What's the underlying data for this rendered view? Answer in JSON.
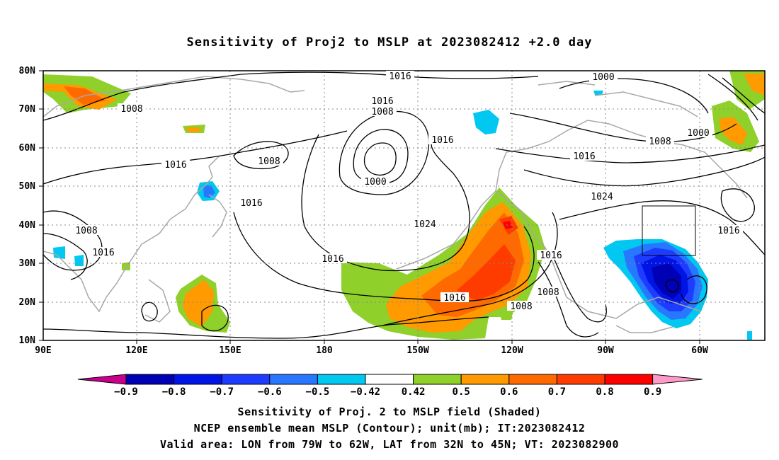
{
  "title": "Sensitivity of Proj2 to MSLP at 2023082412 +2.0 day",
  "map": {
    "lat_labels": [
      "80N",
      "70N",
      "60N",
      "50N",
      "40N",
      "30N",
      "20N",
      "10N"
    ],
    "lon_labels": [
      "90E",
      "120E",
      "150E",
      "180",
      "150W",
      "120W",
      "90W",
      "60W"
    ],
    "contour_labels": [
      {
        "text": "1016"
      },
      {
        "text": "1016"
      },
      {
        "text": "1008"
      },
      {
        "text": "1000"
      },
      {
        "text": "1008"
      },
      {
        "text": "1016"
      },
      {
        "text": "1016"
      },
      {
        "text": "1008"
      },
      {
        "text": "1016"
      },
      {
        "text": "1016"
      },
      {
        "text": "1000"
      },
      {
        "text": "1008"
      },
      {
        "text": "1000"
      },
      {
        "text": "1016"
      },
      {
        "text": "1024"
      },
      {
        "text": "1024"
      },
      {
        "text": "1016"
      },
      {
        "text": "1016"
      },
      {
        "text": "1008"
      },
      {
        "text": "1008"
      },
      {
        "text": "1008"
      },
      {
        "text": "1016"
      },
      {
        "text": "1016"
      }
    ],
    "valid_area": {
      "lon": [
        "79W",
        "62W"
      ],
      "lat": [
        "32N",
        "45N"
      ]
    }
  },
  "colorbar": {
    "labels": [
      "-0.9",
      "-0.8",
      "-0.7",
      "-0.6",
      "-0.5",
      "-0.42",
      "0.42",
      "0.5",
      "0.6",
      "0.7",
      "0.8",
      "0.9"
    ],
    "colors": [
      "#0000b4",
      "#0014e6",
      "#1e3cff",
      "#2878ff",
      "#00c8f0",
      "#ffffff",
      "#8fd02a",
      "#ff9a00",
      "#ff6a00",
      "#ff3c00",
      "#ff0000"
    ],
    "low_color": "#c8008c",
    "high_color": "#ff9ac8"
  },
  "captions": [
    "Sensitivity of Proj. 2 to MSLP field (Shaded)",
    "NCEP ensemble mean MSLP (Contour); unit(mb); IT:2023082412",
    "Valid area: LON from 79W to 62W, LAT from 32N to 45N; VT: 2023082900"
  ]
}
